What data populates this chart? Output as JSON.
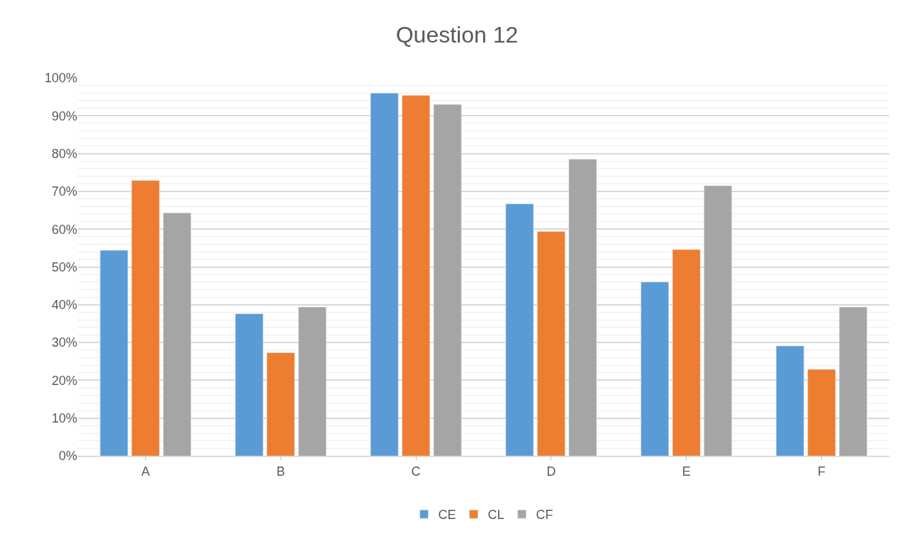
{
  "chart_data": {
    "type": "bar",
    "title": "Question 12",
    "categories": [
      "A",
      "B",
      "C",
      "D",
      "E",
      "F"
    ],
    "series": [
      {
        "name": "CE",
        "color": "#5b9bd5",
        "values": [
          54.4,
          37.6,
          96,
          66.7,
          46,
          29.1
        ]
      },
      {
        "name": "CL",
        "color": "#ed7d31",
        "values": [
          72.9,
          27.3,
          95.4,
          59.4,
          54.6,
          22.9
        ]
      },
      {
        "name": "CF",
        "color": "#a5a5a5",
        "values": [
          64.3,
          39.4,
          93,
          78.5,
          71.5,
          39.4
        ]
      }
    ],
    "ylim": [
      0,
      100
    ],
    "yticks": [
      {
        "value": 0,
        "label": "0%"
      },
      {
        "value": 10,
        "label": "10%"
      },
      {
        "value": 20,
        "label": "20%"
      },
      {
        "value": 30,
        "label": "30%"
      },
      {
        "value": 40,
        "label": "40%"
      },
      {
        "value": 50,
        "label": "50%"
      },
      {
        "value": 60,
        "label": "60%"
      },
      {
        "value": 70,
        "label": "70%"
      },
      {
        "value": 80,
        "label": "80%"
      },
      {
        "value": 90,
        "label": "90%"
      },
      {
        "value": 100,
        "label": "100%"
      }
    ],
    "grid": "y",
    "legend": "bottom"
  }
}
